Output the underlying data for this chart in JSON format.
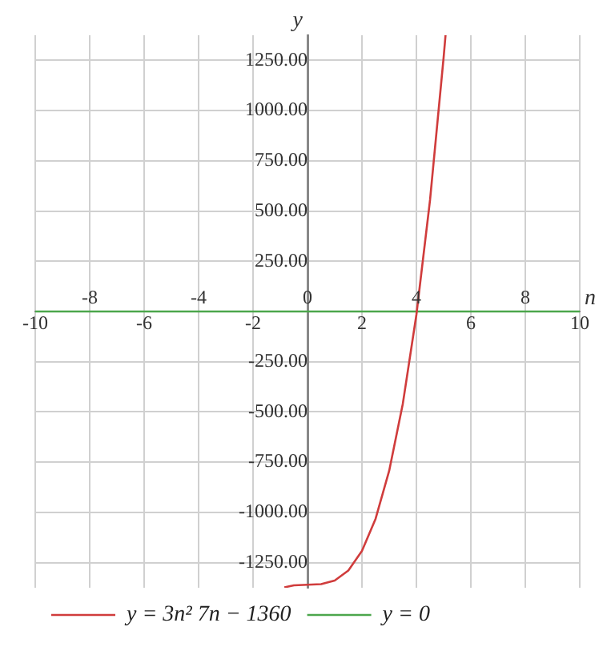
{
  "chart_data": {
    "type": "line",
    "xlabel": "n",
    "ylabel": "y",
    "xlim": [
      -10,
      10
    ],
    "xticks": [
      -10,
      -6,
      -2,
      2,
      6,
      10
    ],
    "x2lim": [
      -10,
      10
    ],
    "x2ticks": [
      -8,
      -4,
      0,
      4,
      8
    ],
    "ylim": [
      -1375,
      1375
    ],
    "yticks": [
      {
        "value": -1250,
        "label": "-1250.00"
      },
      {
        "value": -1000,
        "label": "-1000.00"
      },
      {
        "value": -750,
        "label": "-750.00"
      },
      {
        "value": -500,
        "label": "-500.00"
      },
      {
        "value": -250,
        "label": "-250.00"
      },
      {
        "value": 0,
        "label": null
      },
      {
        "value": 250,
        "label": "250.00"
      },
      {
        "value": 500,
        "label": "500.00"
      },
      {
        "value": 750,
        "label": "750.00"
      },
      {
        "value": 1000,
        "label": "1000.00"
      },
      {
        "value": 1250,
        "label": "1250.00"
      }
    ],
    "series": [
      {
        "name": "y = 3n² 7n − 1360",
        "color": "#d03c3c",
        "x": [
          -0.85,
          -0.5,
          0,
          0.5,
          1,
          1.5,
          2,
          2.5,
          3,
          3.5,
          4,
          4.5,
          5,
          5.07
        ],
        "values": [
          -1373,
          -1363,
          -1360,
          -1357,
          -1339,
          -1289,
          -1192,
          -1032,
          -793,
          -460,
          -16,
          554,
          1265,
          1375
        ]
      },
      {
        "name": "y = 0",
        "color": "#4ca64c",
        "x": [
          -10,
          10
        ],
        "values": [
          0,
          0
        ]
      }
    ],
    "grid": true,
    "legend": "bottom",
    "marker": "none",
    "line_style": "solid"
  }
}
